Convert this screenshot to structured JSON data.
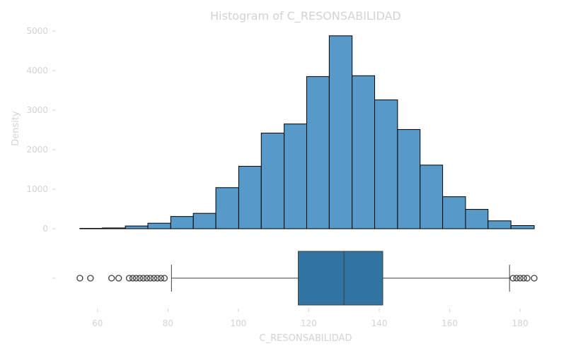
{
  "chart_data": {
    "type": "histogram",
    "title": "Histogram of C_RESONSABILIDAD",
    "xlabel": "C_RESONSABILIDAD",
    "ylabel": "Density",
    "xlim": [
      52,
      186
    ],
    "xticks": [
      60,
      80,
      100,
      120,
      140,
      160,
      180
    ],
    "ylim": [
      0,
      5000
    ],
    "yticks": [
      0,
      1000,
      2000,
      3000,
      4000,
      5000
    ],
    "bar_color": "#5799c9",
    "edge_color": "#000000",
    "bins": [
      {
        "x0": 55.0,
        "x1": 61.4,
        "value": 10
      },
      {
        "x0": 61.4,
        "x1": 67.9,
        "value": 20
      },
      {
        "x0": 67.9,
        "x1": 74.3,
        "value": 70
      },
      {
        "x0": 74.3,
        "x1": 80.8,
        "value": 140
      },
      {
        "x0": 80.8,
        "x1": 87.2,
        "value": 310
      },
      {
        "x0": 87.2,
        "x1": 93.6,
        "value": 390
      },
      {
        "x0": 93.6,
        "x1": 100.1,
        "value": 1040
      },
      {
        "x0": 100.1,
        "x1": 106.5,
        "value": 1580
      },
      {
        "x0": 106.5,
        "x1": 113.0,
        "value": 2420
      },
      {
        "x0": 113.0,
        "x1": 119.4,
        "value": 2650
      },
      {
        "x0": 119.4,
        "x1": 125.8,
        "value": 3850
      },
      {
        "x0": 125.8,
        "x1": 132.3,
        "value": 4880
      },
      {
        "x0": 132.3,
        "x1": 138.7,
        "value": 3870
      },
      {
        "x0": 138.7,
        "x1": 145.2,
        "value": 3260
      },
      {
        "x0": 145.2,
        "x1": 151.6,
        "value": 2510
      },
      {
        "x0": 151.6,
        "x1": 158.0,
        "value": 1610
      },
      {
        "x0": 158.0,
        "x1": 164.5,
        "value": 810
      },
      {
        "x0": 164.5,
        "x1": 170.9,
        "value": 490
      },
      {
        "x0": 170.9,
        "x1": 177.4,
        "value": 200
      },
      {
        "x0": 177.4,
        "x1": 184.0,
        "value": 80
      }
    ],
    "boxplot": {
      "whisker_low": 81,
      "q1": 117,
      "median": 130,
      "q3": 141,
      "whisker_high": 177,
      "box_color": "#3274a1",
      "outliers": [
        55,
        58,
        64,
        66,
        69,
        70,
        71,
        72,
        73,
        74,
        75,
        76,
        77,
        78,
        79,
        178,
        179,
        180,
        181,
        182,
        184
      ]
    }
  }
}
